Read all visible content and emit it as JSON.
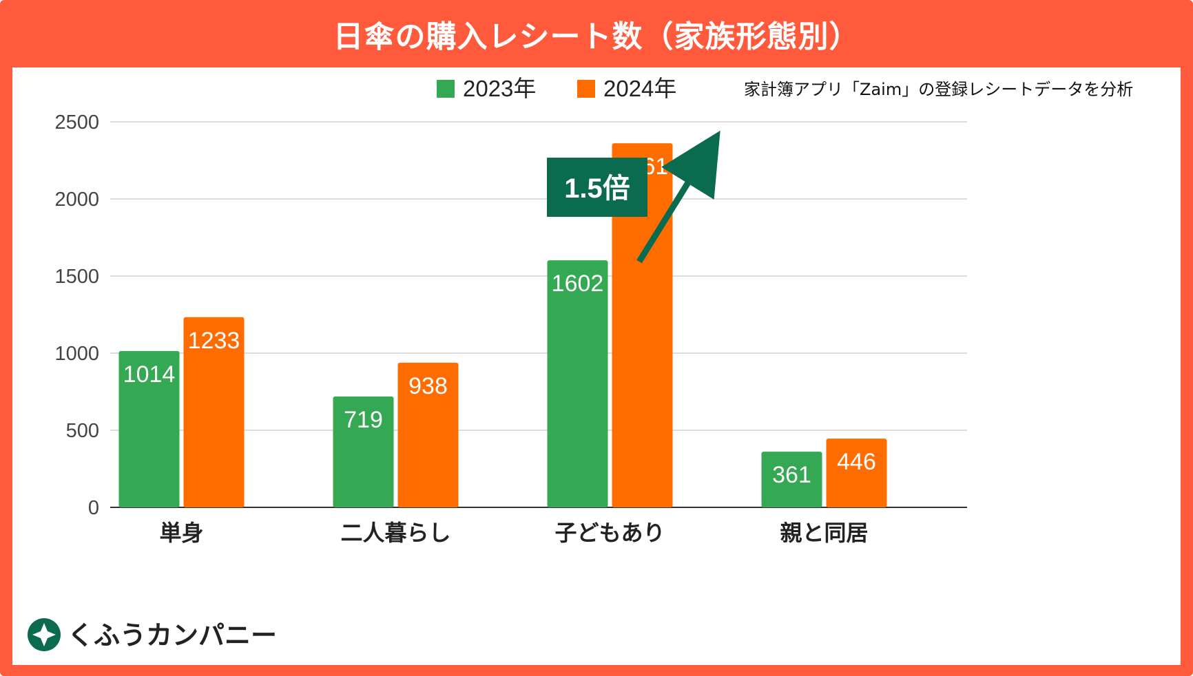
{
  "title": "日傘の購入レシート数（家族形態別）",
  "source_note": "家計簿アプリ「Zaim」の登録レシートデータを分析",
  "logo": {
    "name": "くふうカンパニー",
    "icon": "kufu-logo-icon"
  },
  "callout": {
    "label": "1.5倍",
    "color": "#0b6b4f"
  },
  "colors": {
    "frame": "#ff5a3c",
    "series_2023": "#34a853",
    "series_2024": "#ff6d01",
    "grid": "#d0d0d0"
  },
  "chart_data": {
    "type": "bar",
    "title": "日傘の購入レシート数（家族形態別）",
    "categories": [
      "単身",
      "二人暮らし",
      "子どもあり",
      "親と同居"
    ],
    "series": [
      {
        "name": "2023年",
        "values": [
          1014,
          719,
          1602,
          361
        ],
        "color": "#34a853"
      },
      {
        "name": "2024年",
        "values": [
          1233,
          938,
          2361,
          446
        ],
        "color": "#ff6d01"
      }
    ],
    "ylim": [
      0,
      2500
    ],
    "yticks": [
      0,
      500,
      1000,
      1500,
      2000,
      2500
    ],
    "grid": true,
    "legend": "top-center",
    "data_labels": true
  }
}
